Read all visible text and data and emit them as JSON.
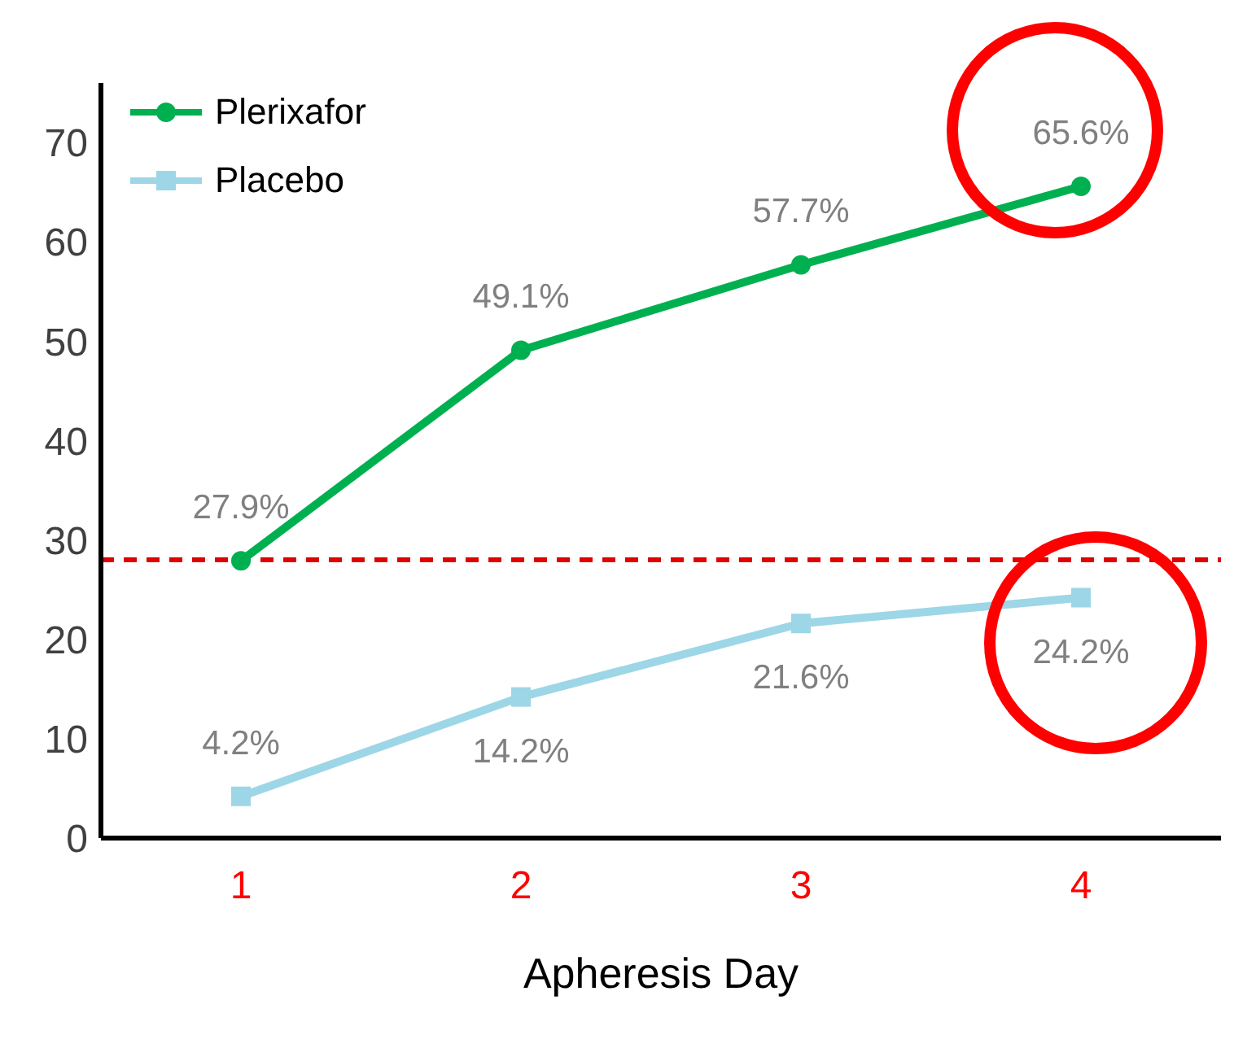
{
  "chart_data": {
    "type": "line",
    "xlabel": "Apheresis Day",
    "categories": [
      "1",
      "2",
      "3",
      "4"
    ],
    "series": [
      {
        "name": "Plerixafor",
        "color": "#00b050",
        "values": [
          27.9,
          49.1,
          57.7,
          65.6
        ],
        "value_labels": [
          "27.9%",
          "49.1%",
          "57.7%",
          "65.6%"
        ],
        "marker": "circle"
      },
      {
        "name": "Placebo",
        "color": "#9dd6e6",
        "values": [
          4.2,
          14.2,
          21.6,
          24.2
        ],
        "value_labels": [
          "4.2%",
          "14.2%",
          "21.6%",
          "24.2%"
        ],
        "marker": "square"
      }
    ],
    "ylim": [
      0,
      76
    ],
    "yticks": [
      0,
      10,
      20,
      30,
      40,
      50,
      60,
      70
    ],
    "grid": false,
    "legend": "top left",
    "line_style": "solid",
    "ref_lines": [
      {
        "axis": "y",
        "value": 28,
        "color": "#e00000",
        "line_style": "dashed"
      }
    ]
  }
}
